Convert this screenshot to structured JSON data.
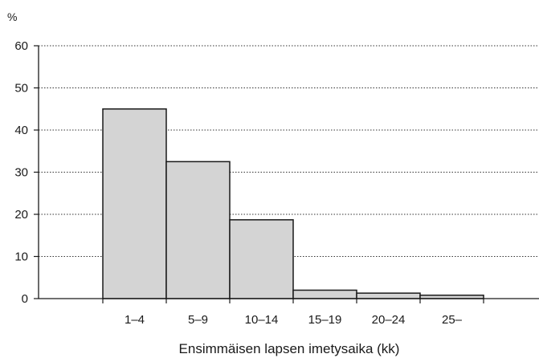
{
  "chart_data": {
    "type": "bar",
    "title": "",
    "ylabel": "%",
    "xlabel": "Ensimmäisen lapsen imetysaika (kk)",
    "categories": [
      "1–4",
      "5–9",
      "10–14",
      "15–19",
      "20–24",
      "25–"
    ],
    "values": [
      45,
      32.5,
      18.7,
      2,
      1.3,
      0.8
    ],
    "ylim": [
      0,
      60
    ],
    "yticks": [
      0,
      10,
      20,
      30,
      40,
      50,
      60
    ],
    "grid": "horizontal dotted",
    "legend": "none",
    "bar_color": "#d4d4d4",
    "edge_color": "#1a1a1a"
  }
}
